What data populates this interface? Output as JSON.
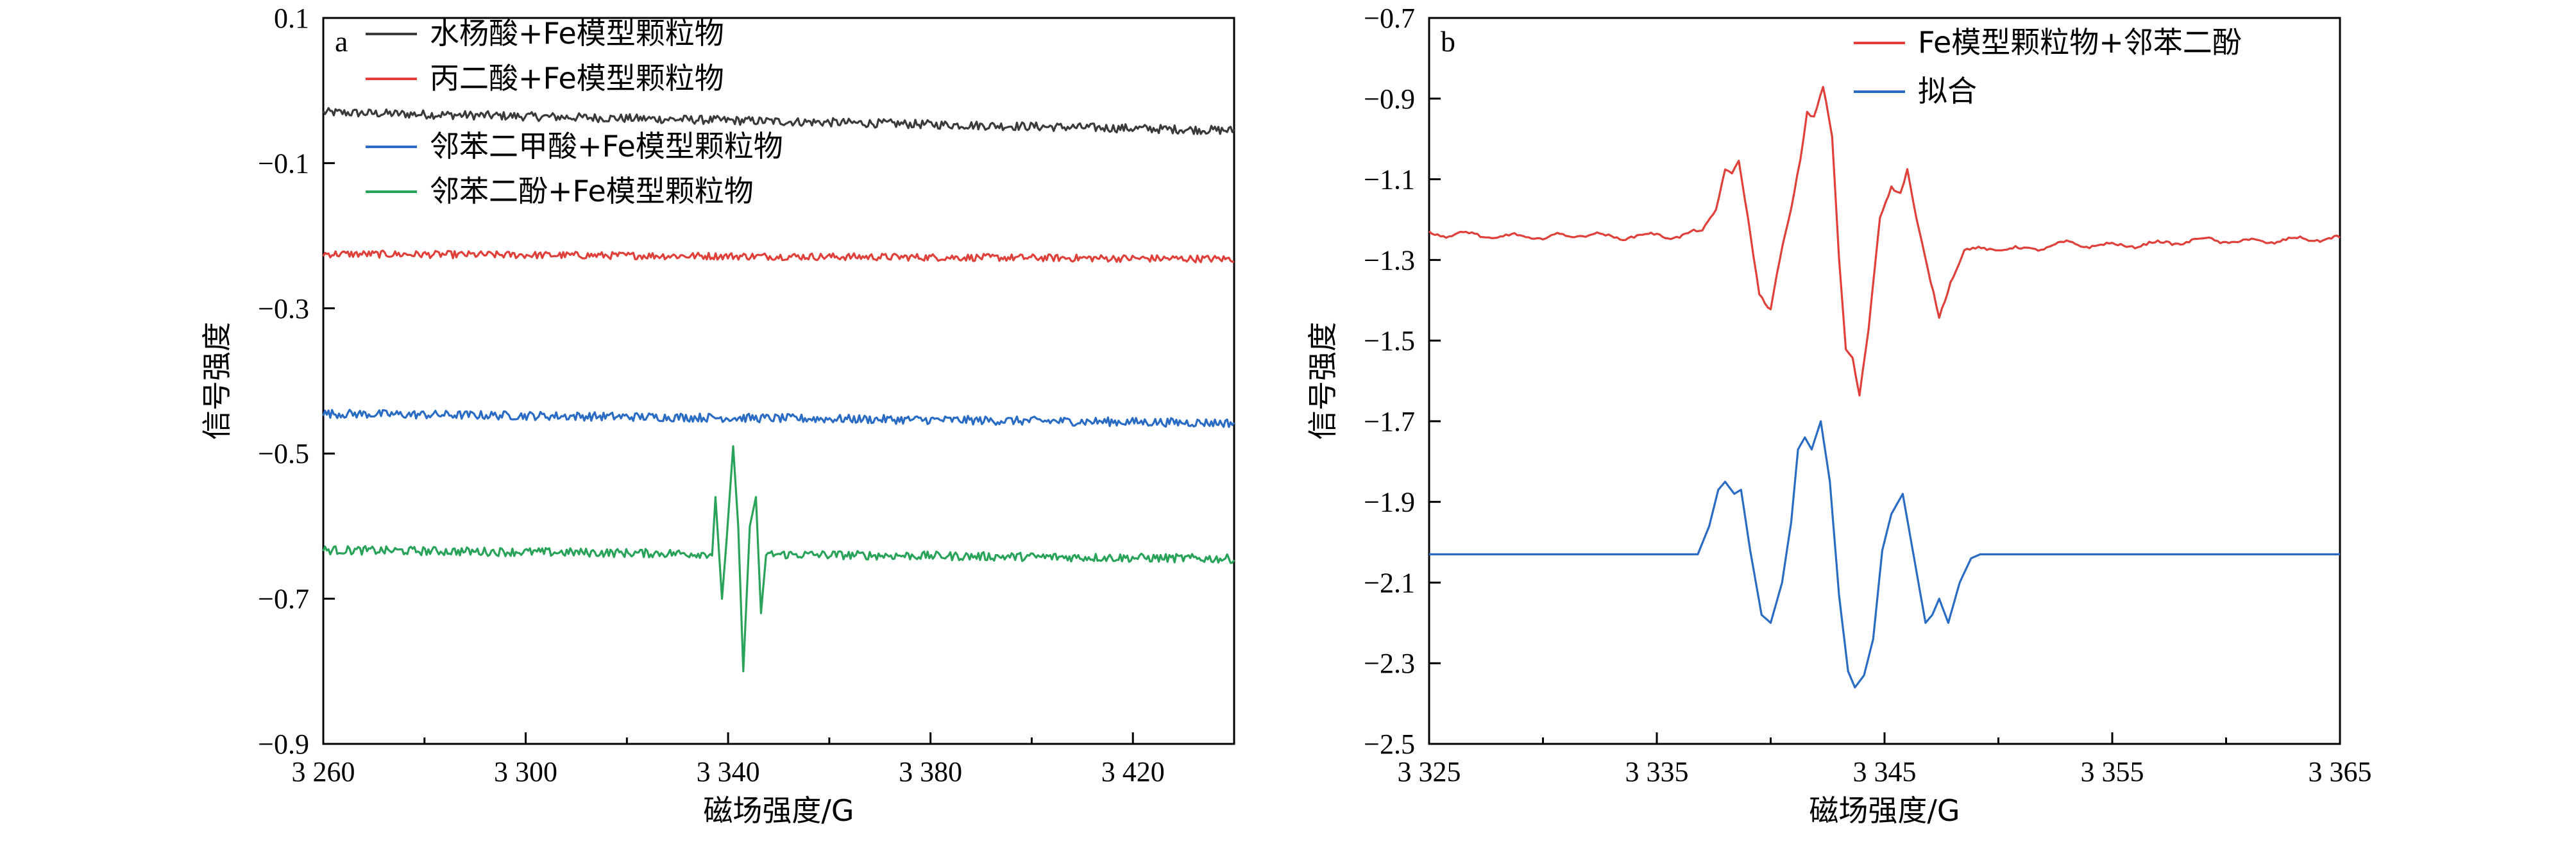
{
  "chart_data": [
    {
      "type": "line",
      "panel_label": "a",
      "xlabel": "磁场强度/G",
      "ylabel": "信号强度",
      "xlim": [
        3260,
        3440
      ],
      "ylim": [
        -0.9,
        0.1
      ],
      "xticks": [
        3260,
        3300,
        3340,
        3380,
        3420
      ],
      "xtick_labels": [
        "3 260",
        "3 300",
        "3 340",
        "3 380",
        "3 420"
      ],
      "xtick_minor": [
        3280,
        3320,
        3360,
        3400,
        3440
      ],
      "yticks": [
        0.1,
        -0.1,
        -0.3,
        -0.5,
        -0.7,
        -0.9
      ],
      "ytick_labels": [
        "0.1",
        "−0.1",
        "−0.3",
        "−0.5",
        "−0.7",
        "−0.9"
      ],
      "grid": false,
      "legend_position": "top-left",
      "series": [
        {
          "name": "水杨酸+Fe模型颗粒物",
          "color": "#3a3a3a",
          "baseline": [
            -0.03,
            -0.055
          ],
          "noise": 0.006,
          "signal": []
        },
        {
          "name": "丙二酸+Fe模型颗粒物",
          "color": "#e0403a",
          "baseline": [
            -0.225,
            -0.232
          ],
          "noise": 0.005,
          "signal": []
        },
        {
          "name": "邻苯二甲酸+Fe模型颗粒物",
          "color": "#2a6cc4",
          "baseline": [
            -0.445,
            -0.458
          ],
          "noise": 0.006,
          "signal": []
        },
        {
          "name": "邻苯二酚+Fe模型颗粒物",
          "color": "#2aa35a",
          "baseline": [
            -0.633,
            -0.645
          ],
          "noise": 0.006,
          "signal": [
            {
              "x": 3337.5,
              "y": -0.56
            },
            {
              "x": 3338.8,
              "y": -0.7
            },
            {
              "x": 3339.7,
              "y": -0.62
            },
            {
              "x": 3341.0,
              "y": -0.49
            },
            {
              "x": 3342.0,
              "y": -0.6
            },
            {
              "x": 3343.0,
              "y": -0.8
            },
            {
              "x": 3344.3,
              "y": -0.6
            },
            {
              "x": 3345.5,
              "y": -0.56
            },
            {
              "x": 3346.5,
              "y": -0.72
            },
            {
              "x": 3347.5,
              "y": -0.64
            }
          ]
        }
      ]
    },
    {
      "type": "line",
      "panel_label": "b",
      "xlabel": "磁场强度/G",
      "ylabel": "信号强度",
      "xlim": [
        3325,
        3365
      ],
      "ylim": [
        -2.5,
        -0.7
      ],
      "xticks": [
        3325,
        3335,
        3345,
        3355,
        3365
      ],
      "xtick_labels": [
        "3 325",
        "3 335",
        "3 345",
        "3 355",
        "3 365"
      ],
      "xtick_minor": [
        3330,
        3340,
        3350,
        3360
      ],
      "yticks": [
        -0.7,
        -0.9,
        -1.1,
        -1.3,
        -1.5,
        -1.7,
        -1.9,
        -2.1,
        -2.3,
        -2.5
      ],
      "ytick_labels": [
        "−0.7",
        "−0.9",
        "−1.1",
        "−1.3",
        "−1.5",
        "−1.7",
        "−1.9",
        "−2.1",
        "−2.3",
        "−2.5"
      ],
      "grid": false,
      "legend_position": "top-right",
      "series": [
        {
          "name": "Fe模型颗粒物+邻苯二酚",
          "color": "#e0403a",
          "baseline": [
            -1.23,
            -1.25
          ],
          "noise": 0.006,
          "points": [
            [
              3325,
              -1.23
            ],
            [
              3326,
              -1.24
            ],
            [
              3327,
              -1.235
            ],
            [
              3328,
              -1.245
            ],
            [
              3329,
              -1.24
            ],
            [
              3330,
              -1.245
            ],
            [
              3331,
              -1.24
            ],
            [
              3332,
              -1.235
            ],
            [
              3333,
              -1.245
            ],
            [
              3334,
              -1.24
            ],
            [
              3335,
              -1.24
            ],
            [
              3336,
              -1.24
            ],
            [
              3337,
              -1.23
            ],
            [
              3337.6,
              -1.17
            ],
            [
              3338.0,
              -1.07
            ],
            [
              3338.3,
              -1.09
            ],
            [
              3338.6,
              -1.06
            ],
            [
              3339.0,
              -1.2
            ],
            [
              3339.5,
              -1.38
            ],
            [
              3340.0,
              -1.42
            ],
            [
              3340.4,
              -1.3
            ],
            [
              3340.9,
              -1.18
            ],
            [
              3341.3,
              -1.05
            ],
            [
              3341.6,
              -0.93
            ],
            [
              3341.9,
              -0.94
            ],
            [
              3342.3,
              -0.87
            ],
            [
              3342.7,
              -1.0
            ],
            [
              3343.0,
              -1.3
            ],
            [
              3343.3,
              -1.52
            ],
            [
              3343.6,
              -1.54
            ],
            [
              3343.9,
              -1.63
            ],
            [
              3344.3,
              -1.47
            ],
            [
              3344.8,
              -1.2
            ],
            [
              3345.3,
              -1.12
            ],
            [
              3345.7,
              -1.13
            ],
            [
              3346.0,
              -1.07
            ],
            [
              3346.4,
              -1.2
            ],
            [
              3346.9,
              -1.33
            ],
            [
              3347.4,
              -1.44
            ],
            [
              3347.9,
              -1.35
            ],
            [
              3348.5,
              -1.28
            ],
            [
              3349.5,
              -1.27
            ],
            [
              3351,
              -1.275
            ],
            [
              3353,
              -1.26
            ],
            [
              3355,
              -1.265
            ],
            [
              3357,
              -1.26
            ],
            [
              3359,
              -1.25
            ],
            [
              3361,
              -1.255
            ],
            [
              3363,
              -1.25
            ],
            [
              3365,
              -1.245
            ]
          ]
        },
        {
          "name": "拟合",
          "color": "#2a6cc4",
          "baseline": [
            -2.03,
            -2.03
          ],
          "noise": 0,
          "points": [
            [
              3325,
              -2.03
            ],
            [
              3330,
              -2.03
            ],
            [
              3335,
              -2.03
            ],
            [
              3336.8,
              -2.03
            ],
            [
              3337.3,
              -1.96
            ],
            [
              3337.7,
              -1.87
            ],
            [
              3338.0,
              -1.85
            ],
            [
              3338.4,
              -1.88
            ],
            [
              3338.7,
              -1.87
            ],
            [
              3339.1,
              -2.02
            ],
            [
              3339.6,
              -2.18
            ],
            [
              3340.0,
              -2.2
            ],
            [
              3340.5,
              -2.1
            ],
            [
              3340.9,
              -1.95
            ],
            [
              3341.2,
              -1.77
            ],
            [
              3341.5,
              -1.74
            ],
            [
              3341.8,
              -1.77
            ],
            [
              3342.2,
              -1.7
            ],
            [
              3342.6,
              -1.85
            ],
            [
              3343.0,
              -2.13
            ],
            [
              3343.4,
              -2.32
            ],
            [
              3343.7,
              -2.36
            ],
            [
              3344.1,
              -2.33
            ],
            [
              3344.5,
              -2.24
            ],
            [
              3344.9,
              -2.02
            ],
            [
              3345.3,
              -1.93
            ],
            [
              3345.8,
              -1.88
            ],
            [
              3346.3,
              -2.04
            ],
            [
              3346.8,
              -2.2
            ],
            [
              3347.1,
              -2.18
            ],
            [
              3347.4,
              -2.14
            ],
            [
              3347.8,
              -2.2
            ],
            [
              3348.3,
              -2.1
            ],
            [
              3348.8,
              -2.04
            ],
            [
              3349.2,
              -2.03
            ],
            [
              3355,
              -2.03
            ],
            [
              3360,
              -2.03
            ],
            [
              3365,
              -2.03
            ]
          ]
        }
      ]
    }
  ]
}
